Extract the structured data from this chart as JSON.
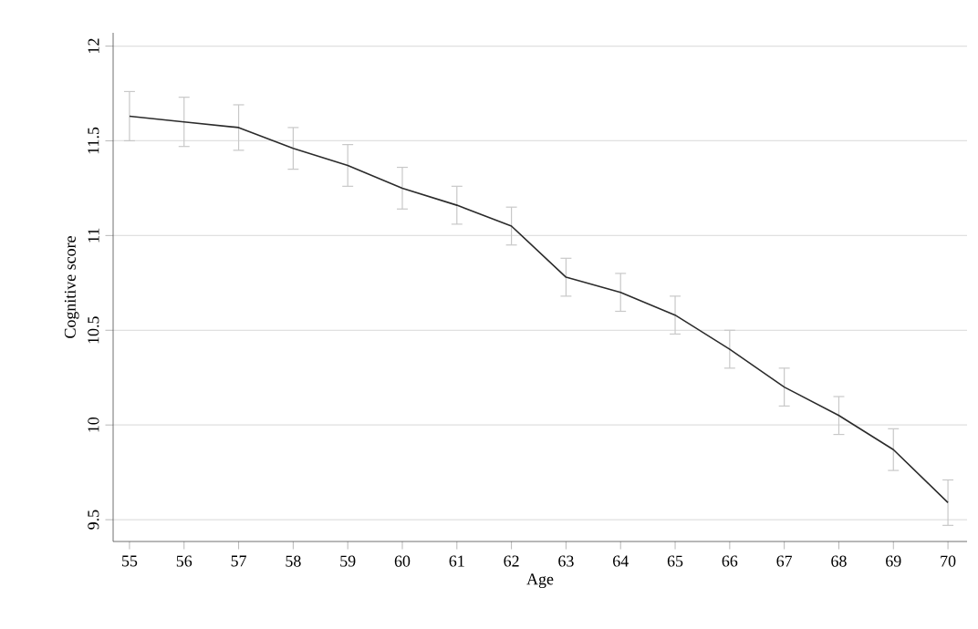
{
  "chart_data": {
    "type": "line",
    "xlabel": "Age",
    "ylabel": "Cognitive score",
    "x": [
      55,
      56,
      57,
      58,
      59,
      60,
      61,
      62,
      63,
      64,
      65,
      66,
      67,
      68,
      69,
      70
    ],
    "series": [
      {
        "color": "#2b2b2b",
        "values": [
          11.63,
          11.6,
          11.57,
          11.46,
          11.37,
          11.25,
          11.16,
          11.05,
          10.78,
          10.7,
          10.58,
          10.4,
          10.2,
          10.05,
          9.87,
          9.59
        ],
        "errors": [
          0.13,
          0.13,
          0.12,
          0.11,
          0.11,
          0.11,
          0.1,
          0.1,
          0.1,
          0.1,
          0.1,
          0.1,
          0.1,
          0.1,
          0.11,
          0.12
        ]
      }
    ],
    "xlim": [
      54.7,
      70.35
    ],
    "ylim": [
      9.385,
      12.07
    ],
    "xticks": [
      55,
      56,
      57,
      58,
      59,
      60,
      61,
      62,
      63,
      64,
      65,
      66,
      67,
      68,
      69,
      70
    ],
    "yticks": [
      9.5,
      10,
      10.5,
      11,
      11.5,
      12
    ],
    "grid": "y",
    "legend": false,
    "marker": "none",
    "line_style": "solid"
  }
}
